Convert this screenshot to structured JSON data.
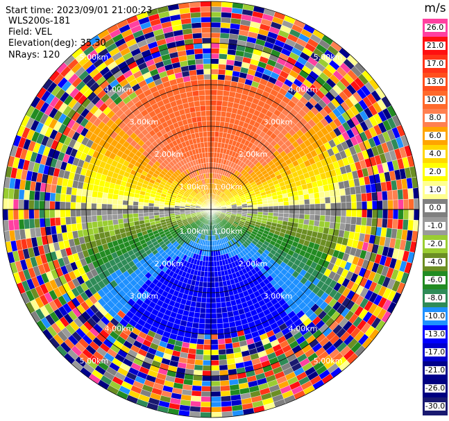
{
  "chart_data": {
    "type": "ppi",
    "annotations": [
      "Start time: 2023/09/01 21:00:23",
      "WLS200s-181",
      "Field: VEL",
      "Elevation(deg): 35.30",
      "NRays: 120"
    ],
    "range_rings": [
      {
        "value": 1,
        "label": "1.00km"
      },
      {
        "value": 2,
        "label": "2.00km"
      },
      {
        "value": 3,
        "label": "3.00km"
      },
      {
        "value": 4,
        "label": "4.00km"
      },
      {
        "value": 5,
        "label": "5.00km"
      }
    ],
    "colorbar": {
      "title": "m/s",
      "ticks": [
        {
          "value": 26,
          "label": "26.0"
        },
        {
          "value": 21,
          "label": "21.0"
        },
        {
          "value": 17,
          "label": "17.0"
        },
        {
          "value": 13,
          "label": "13.0"
        },
        {
          "value": 10,
          "label": "10.0"
        },
        {
          "value": 8,
          "label": "8.0"
        },
        {
          "value": 6,
          "label": "6.0"
        },
        {
          "value": 4,
          "label": "4.0"
        },
        {
          "value": 2,
          "label": "2.0"
        },
        {
          "value": 1,
          "label": "1.0"
        },
        {
          "value": 0,
          "label": "0.0"
        },
        {
          "value": -1,
          "label": "-1.0"
        },
        {
          "value": -2,
          "label": "-2.0"
        },
        {
          "value": -4,
          "label": "-4.0"
        },
        {
          "value": -6,
          "label": "-6.0"
        },
        {
          "value": -8,
          "label": "-8.0"
        },
        {
          "value": -10,
          "label": "-10.0"
        },
        {
          "value": -13,
          "label": "-13.0"
        },
        {
          "value": -17,
          "label": "-17.0"
        },
        {
          "value": -21,
          "label": "-21.0"
        },
        {
          "value": -26,
          "label": "-26.0"
        },
        {
          "value": -30,
          "label": "-30.0"
        }
      ],
      "colors": [
        "#ff40a0",
        "#ff1010",
        "#ff3418",
        "#ff4f1e",
        "#ff6a2c",
        "#ff8050",
        "#ffa500",
        "#ffd700",
        "#ffff00",
        "#ffff90",
        "#808080",
        "#9a9a9a",
        "#9acd32",
        "#6b8e23",
        "#228b22",
        "#2e8b57",
        "#1e90ff",
        "#0000ff",
        "#0000cd",
        "#00008b",
        "#000080",
        "#191970"
      ]
    }
  }
}
